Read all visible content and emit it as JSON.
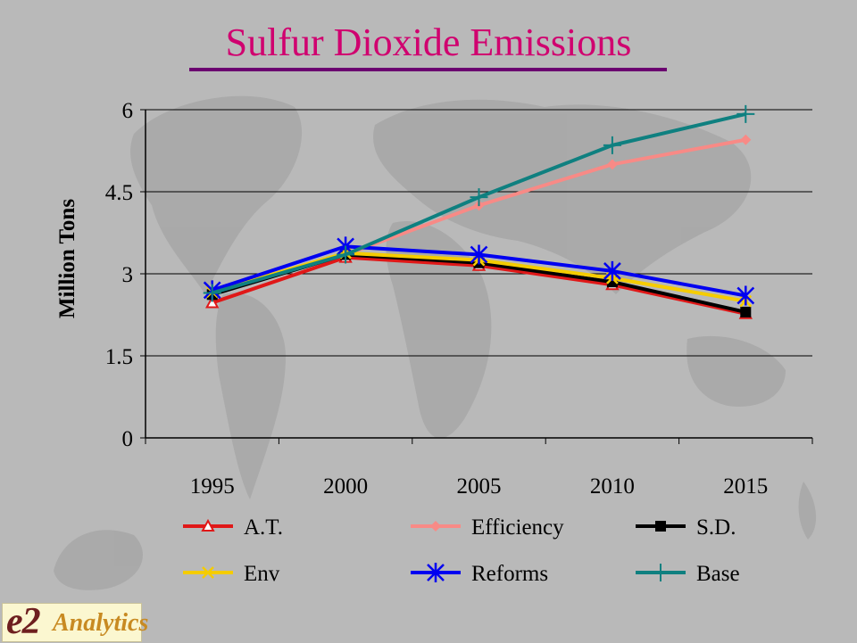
{
  "slide": {
    "title": "Sulfur Dioxide Emissions",
    "logo": {
      "mark": "e2",
      "text": "Analytics"
    }
  },
  "chart_data": {
    "type": "line",
    "title": "Sulfur Dioxide Emissions",
    "xlabel": "",
    "ylabel": "Million Tons",
    "categories": [
      "1995",
      "2000",
      "2005",
      "2010",
      "2015"
    ],
    "ylim": [
      0,
      6
    ],
    "yticks": [
      "0",
      "1.5",
      "3",
      "4.5",
      "6"
    ],
    "grid": true,
    "legend_position": "bottom",
    "series": [
      {
        "name": "A.T.",
        "values": [
          2.47,
          3.3,
          3.15,
          2.8,
          2.27
        ],
        "color": "#e01818",
        "marker": "triangle"
      },
      {
        "name": "Efficiency",
        "values": [
          2.65,
          3.35,
          4.25,
          5.0,
          5.45
        ],
        "color": "#f88a86",
        "marker": "diamond"
      },
      {
        "name": "S.D.",
        "values": [
          2.62,
          3.35,
          3.2,
          2.85,
          2.3
        ],
        "color": "#000000",
        "marker": "square"
      },
      {
        "name": "Env",
        "values": [
          2.67,
          3.38,
          3.25,
          2.92,
          2.5
        ],
        "color": "#f5cc00",
        "marker": "x"
      },
      {
        "name": "Reforms",
        "values": [
          2.7,
          3.5,
          3.35,
          3.05,
          2.6
        ],
        "color": "#0000f0",
        "marker": "star"
      },
      {
        "name": "Base",
        "values": [
          2.65,
          3.35,
          4.4,
          5.35,
          5.92
        ],
        "color": "#0f8080",
        "marker": "plus"
      }
    ]
  }
}
